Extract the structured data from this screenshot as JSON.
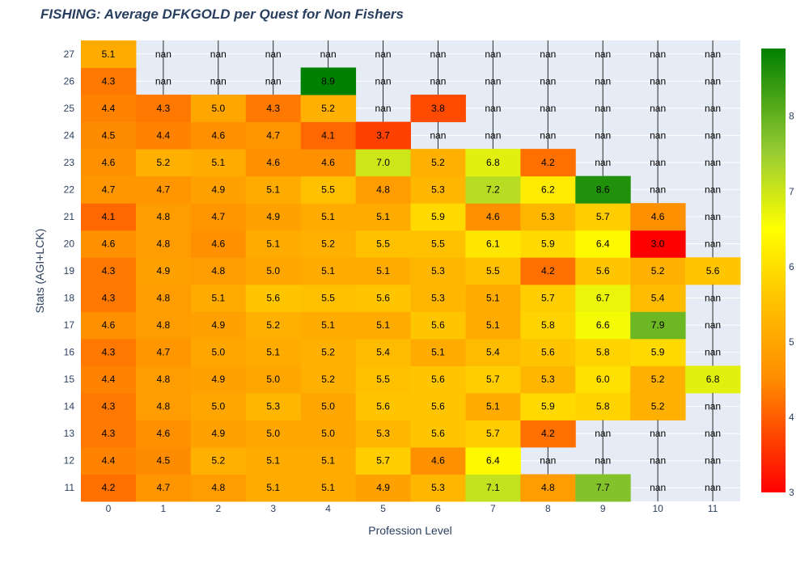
{
  "chart_data": {
    "type": "heatmap",
    "title": "FISHING: Average DFKGOLD per Quest for Non Fishers",
    "xlabel": "Profession Level",
    "ylabel": "Stats (AGI+LCK)",
    "x": [
      "0",
      "1",
      "2",
      "3",
      "4",
      "5",
      "6",
      "7",
      "8",
      "9",
      "10",
      "11"
    ],
    "y": [
      "11",
      "12",
      "13",
      "14",
      "15",
      "16",
      "17",
      "18",
      "19",
      "20",
      "21",
      "22",
      "23",
      "24",
      "25",
      "26",
      "27"
    ],
    "z": [
      [
        4.2,
        4.7,
        4.8,
        5.1,
        5.1,
        4.9,
        5.3,
        7.1,
        4.8,
        7.7,
        null,
        null
      ],
      [
        4.4,
        4.5,
        5.2,
        5.1,
        5.1,
        5.7,
        4.6,
        6.4,
        null,
        null,
        null,
        null
      ],
      [
        4.3,
        4.6,
        4.9,
        5.0,
        5.0,
        5.3,
        5.6,
        5.7,
        4.2,
        null,
        null,
        null
      ],
      [
        4.3,
        4.8,
        5.0,
        5.3,
        5.0,
        5.6,
        5.6,
        5.1,
        5.9,
        5.8,
        5.2,
        null
      ],
      [
        4.4,
        4.8,
        4.9,
        5.0,
        5.2,
        5.5,
        5.6,
        5.7,
        5.3,
        6.0,
        5.2,
        6.8
      ],
      [
        4.3,
        4.7,
        5.0,
        5.1,
        5.2,
        5.4,
        5.1,
        5.4,
        5.6,
        5.8,
        5.9,
        null
      ],
      [
        4.6,
        4.8,
        4.9,
        5.2,
        5.1,
        5.1,
        5.6,
        5.1,
        5.8,
        6.6,
        7.9,
        null
      ],
      [
        4.3,
        4.8,
        5.1,
        5.6,
        5.5,
        5.6,
        5.3,
        5.1,
        5.7,
        6.7,
        5.4,
        null
      ],
      [
        4.3,
        4.9,
        4.8,
        5.0,
        5.1,
        5.1,
        5.3,
        5.5,
        4.2,
        5.6,
        5.2,
        5.6
      ],
      [
        4.6,
        4.8,
        4.6,
        5.1,
        5.2,
        5.5,
        5.5,
        6.1,
        5.9,
        6.4,
        3.0,
        null
      ],
      [
        4.1,
        4.8,
        4.7,
        4.9,
        5.1,
        5.1,
        5.9,
        4.6,
        5.3,
        5.7,
        4.6,
        null
      ],
      [
        4.7,
        4.7,
        4.9,
        5.1,
        5.5,
        4.8,
        5.3,
        7.2,
        6.2,
        8.6,
        null,
        null
      ],
      [
        4.6,
        5.2,
        5.1,
        4.6,
        4.6,
        7.0,
        5.2,
        6.8,
        4.2,
        null,
        null,
        null
      ],
      [
        4.5,
        4.4,
        4.6,
        4.7,
        4.1,
        3.7,
        null,
        null,
        null,
        null,
        null,
        null
      ],
      [
        4.4,
        4.3,
        5.0,
        4.3,
        5.2,
        null,
        3.8,
        null,
        null,
        null,
        null,
        null
      ],
      [
        4.3,
        null,
        null,
        null,
        8.9,
        null,
        null,
        null,
        null,
        null,
        null,
        null
      ],
      [
        5.1,
        null,
        null,
        null,
        null,
        null,
        null,
        null,
        null,
        null,
        null,
        null
      ]
    ],
    "missing_label": "nan",
    "colorscale": {
      "min": 3,
      "max": 8.9,
      "stops": [
        {
          "value": 3.0,
          "color": "#ff0000"
        },
        {
          "value": 4.5,
          "color": "#ff8c00"
        },
        {
          "value": 5.5,
          "color": "#ffc000"
        },
        {
          "value": 6.5,
          "color": "#ffff00"
        },
        {
          "value": 7.5,
          "color": "#9acd32"
        },
        {
          "value": 8.9,
          "color": "#008000"
        }
      ],
      "ticks": [
        "3",
        "4",
        "5",
        "6",
        "7",
        "8"
      ]
    },
    "plot_background": "#e5ecf6",
    "grid": true
  }
}
